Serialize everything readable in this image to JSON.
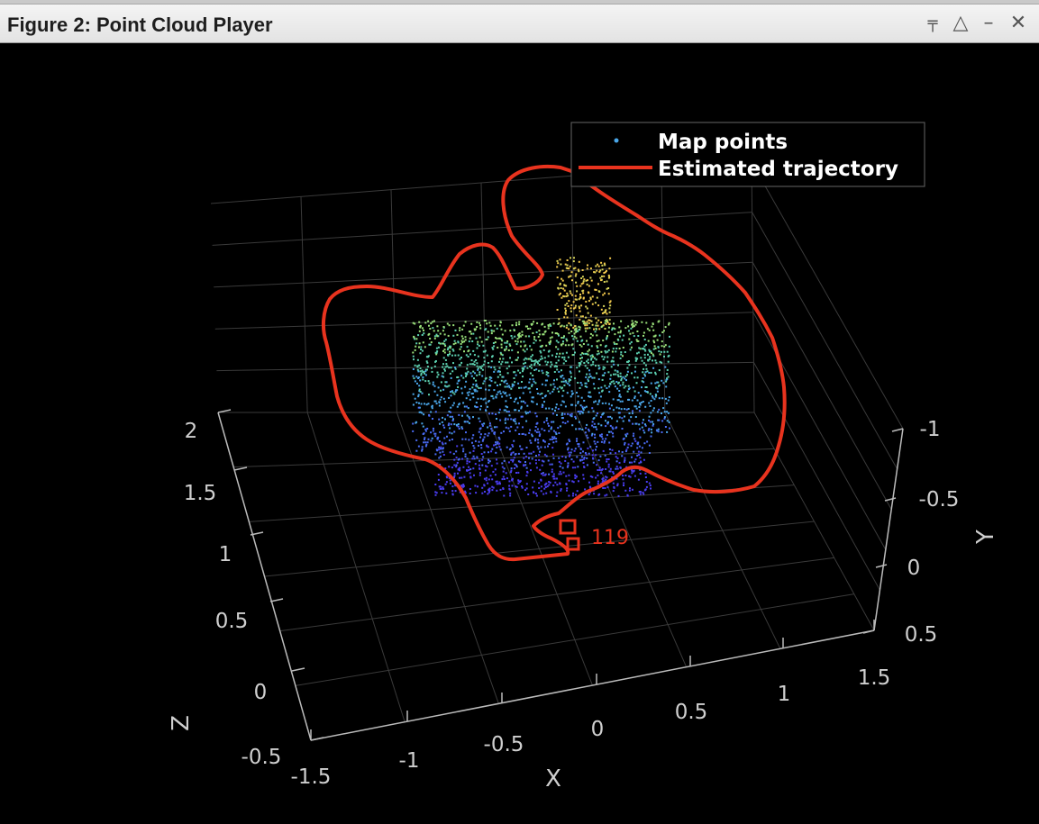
{
  "window": {
    "title": "Figure 2: Point Cloud Player",
    "controls": {
      "pin": "pin-icon",
      "undock": "undock-icon",
      "minimize": "minimize-icon",
      "close": "close-icon"
    }
  },
  "colors": {
    "background": "#000000",
    "axis": "#8c8c8c",
    "trajectory": "#e8331e",
    "map_points": [
      "#4a3cf0",
      "#4a6cf5",
      "#4aa6e8",
      "#5cd0b0",
      "#9ae07a",
      "#d8d45a",
      "#f2c94c"
    ]
  },
  "chart_data": {
    "type": "scatter",
    "title": "",
    "legend": {
      "placement": "top-right",
      "entries": [
        "Map points",
        "Estimated trajectory"
      ]
    },
    "axes": {
      "x": {
        "label": "X",
        "ticks": [
          "-1.5",
          "-1",
          "-0.5",
          "0",
          "0.5",
          "1",
          "1.5"
        ],
        "lim": [
          -1.5,
          1.5
        ]
      },
      "y": {
        "label": "Y",
        "ticks": [
          "-1",
          "-0.5",
          "0",
          "0.5"
        ],
        "lim": [
          -1,
          0.5
        ]
      },
      "z": {
        "label": "Z",
        "ticks": [
          "-0.5",
          "0",
          "0.5",
          "1",
          "1.5",
          "2"
        ],
        "lim": [
          -0.5,
          2
        ]
      }
    },
    "grid": true,
    "current_frame_label": "119"
  }
}
